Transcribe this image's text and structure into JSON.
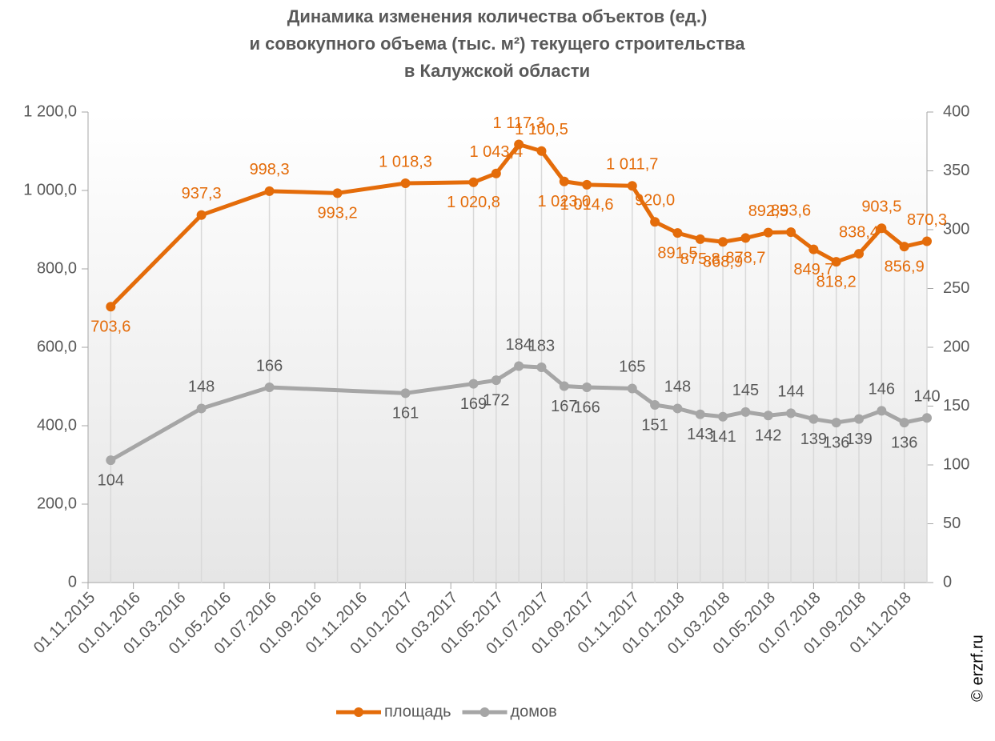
{
  "chart_data": {
    "type": "line",
    "title": [
      "Динамика изменения количества объектов (ед.)",
      "и совокупного объема (тыс. м²) текущего строительства",
      "в Калужской области"
    ],
    "x": [
      "01.12.2015",
      "01.04.2016",
      "01.07.2016",
      "01.10.2016",
      "01.01.2017",
      "01.04.2017",
      "01.05.2017",
      "01.06.2017",
      "01.07.2017",
      "01.08.2017",
      "01.09.2017",
      "01.11.2017",
      "01.12.2017",
      "01.01.2018",
      "01.02.2018",
      "01.03.2018",
      "01.04.2018",
      "01.05.2018",
      "01.06.2018",
      "01.07.2018",
      "01.08.2018",
      "01.09.2018",
      "01.10.2018",
      "01.11.2018",
      "01.12.2018"
    ],
    "series": [
      {
        "name": "площадь",
        "color": "#e46c0a",
        "axis": "y",
        "values": [
          703.6,
          937.3,
          998.3,
          993.2,
          1018.3,
          1020.8,
          1043.4,
          1117.3,
          1100.5,
          1023.0,
          1014.6,
          1011.7,
          920.0,
          891.5,
          875.8,
          868.9,
          878.7,
          892.5,
          893.6,
          849.7,
          818.2,
          838.4,
          903.5,
          856.9,
          870.3
        ],
        "value_labels": [
          "703,6",
          "937,3",
          "998,3",
          "993,2",
          "1 018,3",
          "1 020,8",
          "1 043,4",
          "1 117,3",
          "1 100,5",
          "1 023,0",
          "1 014,6",
          "1 011,7",
          "920,0",
          "891,5",
          "875,8",
          "868,9",
          "878,7",
          "892,5",
          "893,6",
          "849,7",
          "818,2",
          "838,4",
          "903,5",
          "856,9",
          "870,3"
        ]
      },
      {
        "name": "домов",
        "color": "#a6a6a6",
        "axis": "y2",
        "x": [
          "01.12.2015",
          "01.04.2016",
          "01.07.2016",
          "01.01.2017",
          "01.04.2017",
          "01.05.2017",
          "01.06.2017",
          "01.07.2017",
          "01.08.2017",
          "01.09.2017",
          "01.11.2017",
          "01.12.2017",
          "01.01.2018",
          "01.02.2018",
          "01.03.2018",
          "01.04.2018",
          "01.05.2018",
          "01.06.2018",
          "01.07.2018",
          "01.08.2018",
          "01.09.2018",
          "01.10.2018",
          "01.11.2018",
          "01.12.2018"
        ],
        "values": [
          104,
          148,
          166,
          161,
          169,
          172,
          184,
          183,
          167,
          166,
          165,
          151,
          148,
          143,
          141,
          145,
          142,
          144,
          139,
          136,
          139,
          146,
          136,
          140
        ]
      }
    ],
    "xlim": [
      "01.11.2015",
      "01.12.2018"
    ],
    "xticks": [
      "01.11.2015",
      "01.01.2016",
      "01.03.2016",
      "01.05.2016",
      "01.07.2016",
      "01.09.2016",
      "01.11.2016",
      "01.01.2017",
      "01.03.2017",
      "01.05.2017",
      "01.07.2017",
      "01.09.2017",
      "01.11.2017",
      "01.01.2018",
      "01.03.2018",
      "01.05.2018",
      "01.07.2018",
      "01.09.2018",
      "01.11.2018"
    ],
    "ylim": [
      0,
      1200
    ],
    "yticks": [
      0,
      {
        "value": 200,
        "label": "200,0"
      },
      {
        "value": 400,
        "label": "400,0"
      },
      {
        "value": 600,
        "label": "600,0"
      },
      {
        "value": 800,
        "label": "800,0"
      },
      {
        "value": 1000,
        "label": "1 000,0"
      },
      {
        "value": 1200,
        "label": "1 200,0"
      }
    ],
    "y2lim": [
      0,
      400
    ],
    "y2ticks": [
      0,
      50,
      100,
      150,
      200,
      250,
      300,
      350,
      400
    ],
    "legend": "bottom",
    "source": "© erzrf.ru"
  }
}
